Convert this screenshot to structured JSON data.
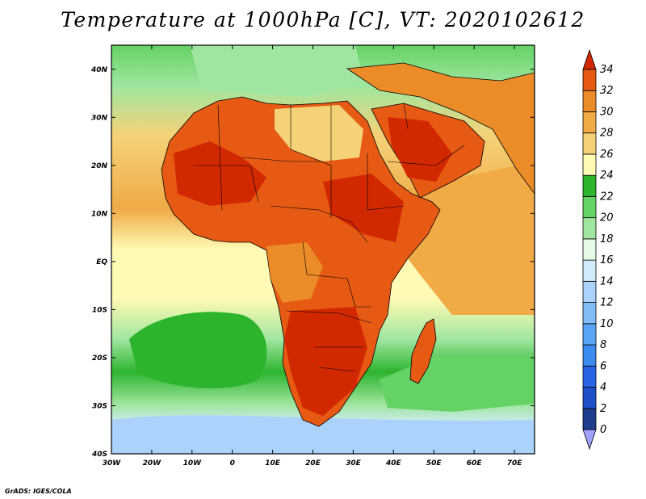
{
  "title": "Temperature at 1000hPa [C], VT: 2020102612",
  "credit": "GrADS: IGES/COLA",
  "map": {
    "lon_range": [
      -30,
      75
    ],
    "lat_range": [
      -40,
      45
    ],
    "lon_ticks": [
      {
        "value": -30,
        "label": "30W"
      },
      {
        "value": -20,
        "label": "20W"
      },
      {
        "value": -10,
        "label": "10W"
      },
      {
        "value": 0,
        "label": "0"
      },
      {
        "value": 10,
        "label": "10E"
      },
      {
        "value": 20,
        "label": "20E"
      },
      {
        "value": 30,
        "label": "30E"
      },
      {
        "value": 40,
        "label": "40E"
      },
      {
        "value": 50,
        "label": "50E"
      },
      {
        "value": 60,
        "label": "60E"
      },
      {
        "value": 70,
        "label": "70E"
      }
    ],
    "lat_ticks": [
      {
        "value": 40,
        "label": "40N"
      },
      {
        "value": 30,
        "label": "30N"
      },
      {
        "value": 20,
        "label": "20N"
      },
      {
        "value": 10,
        "label": "10N"
      },
      {
        "value": 0,
        "label": "EQ"
      },
      {
        "value": -10,
        "label": "10S"
      },
      {
        "value": -20,
        "label": "20S"
      },
      {
        "value": -30,
        "label": "30S"
      },
      {
        "value": -40,
        "label": "40S"
      }
    ]
  },
  "colorbar": {
    "levels": [
      0,
      2,
      4,
      6,
      8,
      10,
      12,
      14,
      16,
      18,
      20,
      22,
      24,
      26,
      28,
      30,
      32,
      34
    ],
    "colors": [
      "#a0a0ff",
      "#1e3c8c",
      "#1e50c8",
      "#2864e6",
      "#3c8cf0",
      "#5aa5f5",
      "#82bef5",
      "#aad2fa",
      "#d2ebfa",
      "#e6fae6",
      "#a0e6a0",
      "#64d264",
      "#2db42d",
      "#fffab4",
      "#f5d278",
      "#f0aa46",
      "#eb8c28",
      "#e65a14",
      "#d22800"
    ]
  }
}
